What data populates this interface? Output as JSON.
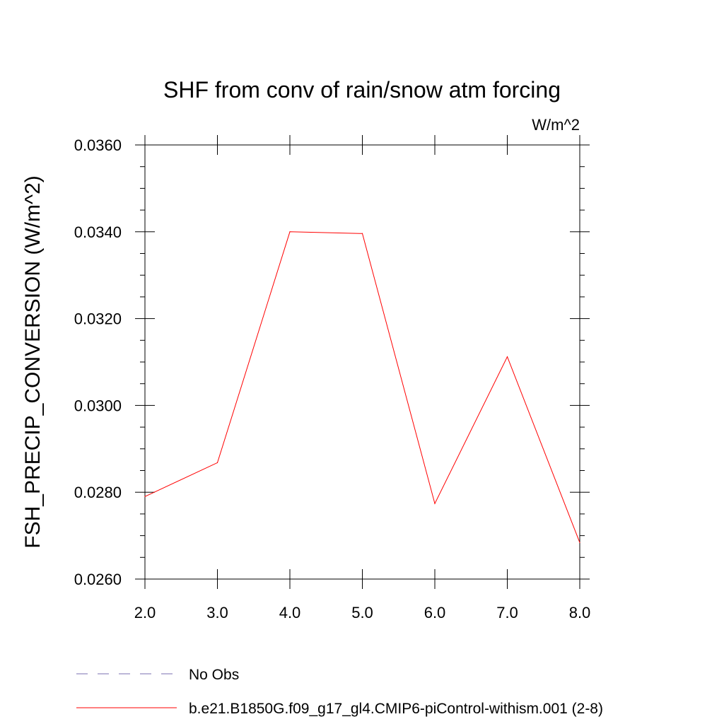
{
  "chart_data": {
    "type": "line",
    "title": "SHF from conv of rain/snow atm forcing",
    "units": "W/m^2",
    "xlabel": "",
    "ylabel": "FSH_PRECIP_CONVERSION  (W/m^2)",
    "xlim": [
      2.0,
      8.0
    ],
    "ylim": [
      0.026,
      0.036
    ],
    "xticks": [
      "2.0",
      "3.0",
      "4.0",
      "5.0",
      "6.0",
      "7.0",
      "8.0"
    ],
    "yticks": [
      "0.0260",
      "0.0280",
      "0.0300",
      "0.0320",
      "0.0340",
      "0.0360"
    ],
    "grid": false,
    "legend_position": "bottom",
    "series": [
      {
        "name": "b.e21.B1850G.f09_g17_gl4.CMIP6-piControl-withism.001 (2-8)",
        "color": "#ff0000",
        "style": "solid",
        "x": [
          2.0,
          3.0,
          4.0,
          5.0,
          6.0,
          7.0,
          8.0
        ],
        "y": [
          0.0279,
          0.02868,
          0.034,
          0.03396,
          0.02774,
          0.03112,
          0.02684
        ]
      }
    ],
    "legend": [
      {
        "label": "No Obs",
        "color": "#7a6fb0",
        "style": "dashed"
      },
      {
        "label": "b.e21.B1850G.f09_g17_gl4.CMIP6-piControl-withism.001 (2-8)",
        "color": "#ff0000",
        "style": "solid"
      }
    ]
  }
}
